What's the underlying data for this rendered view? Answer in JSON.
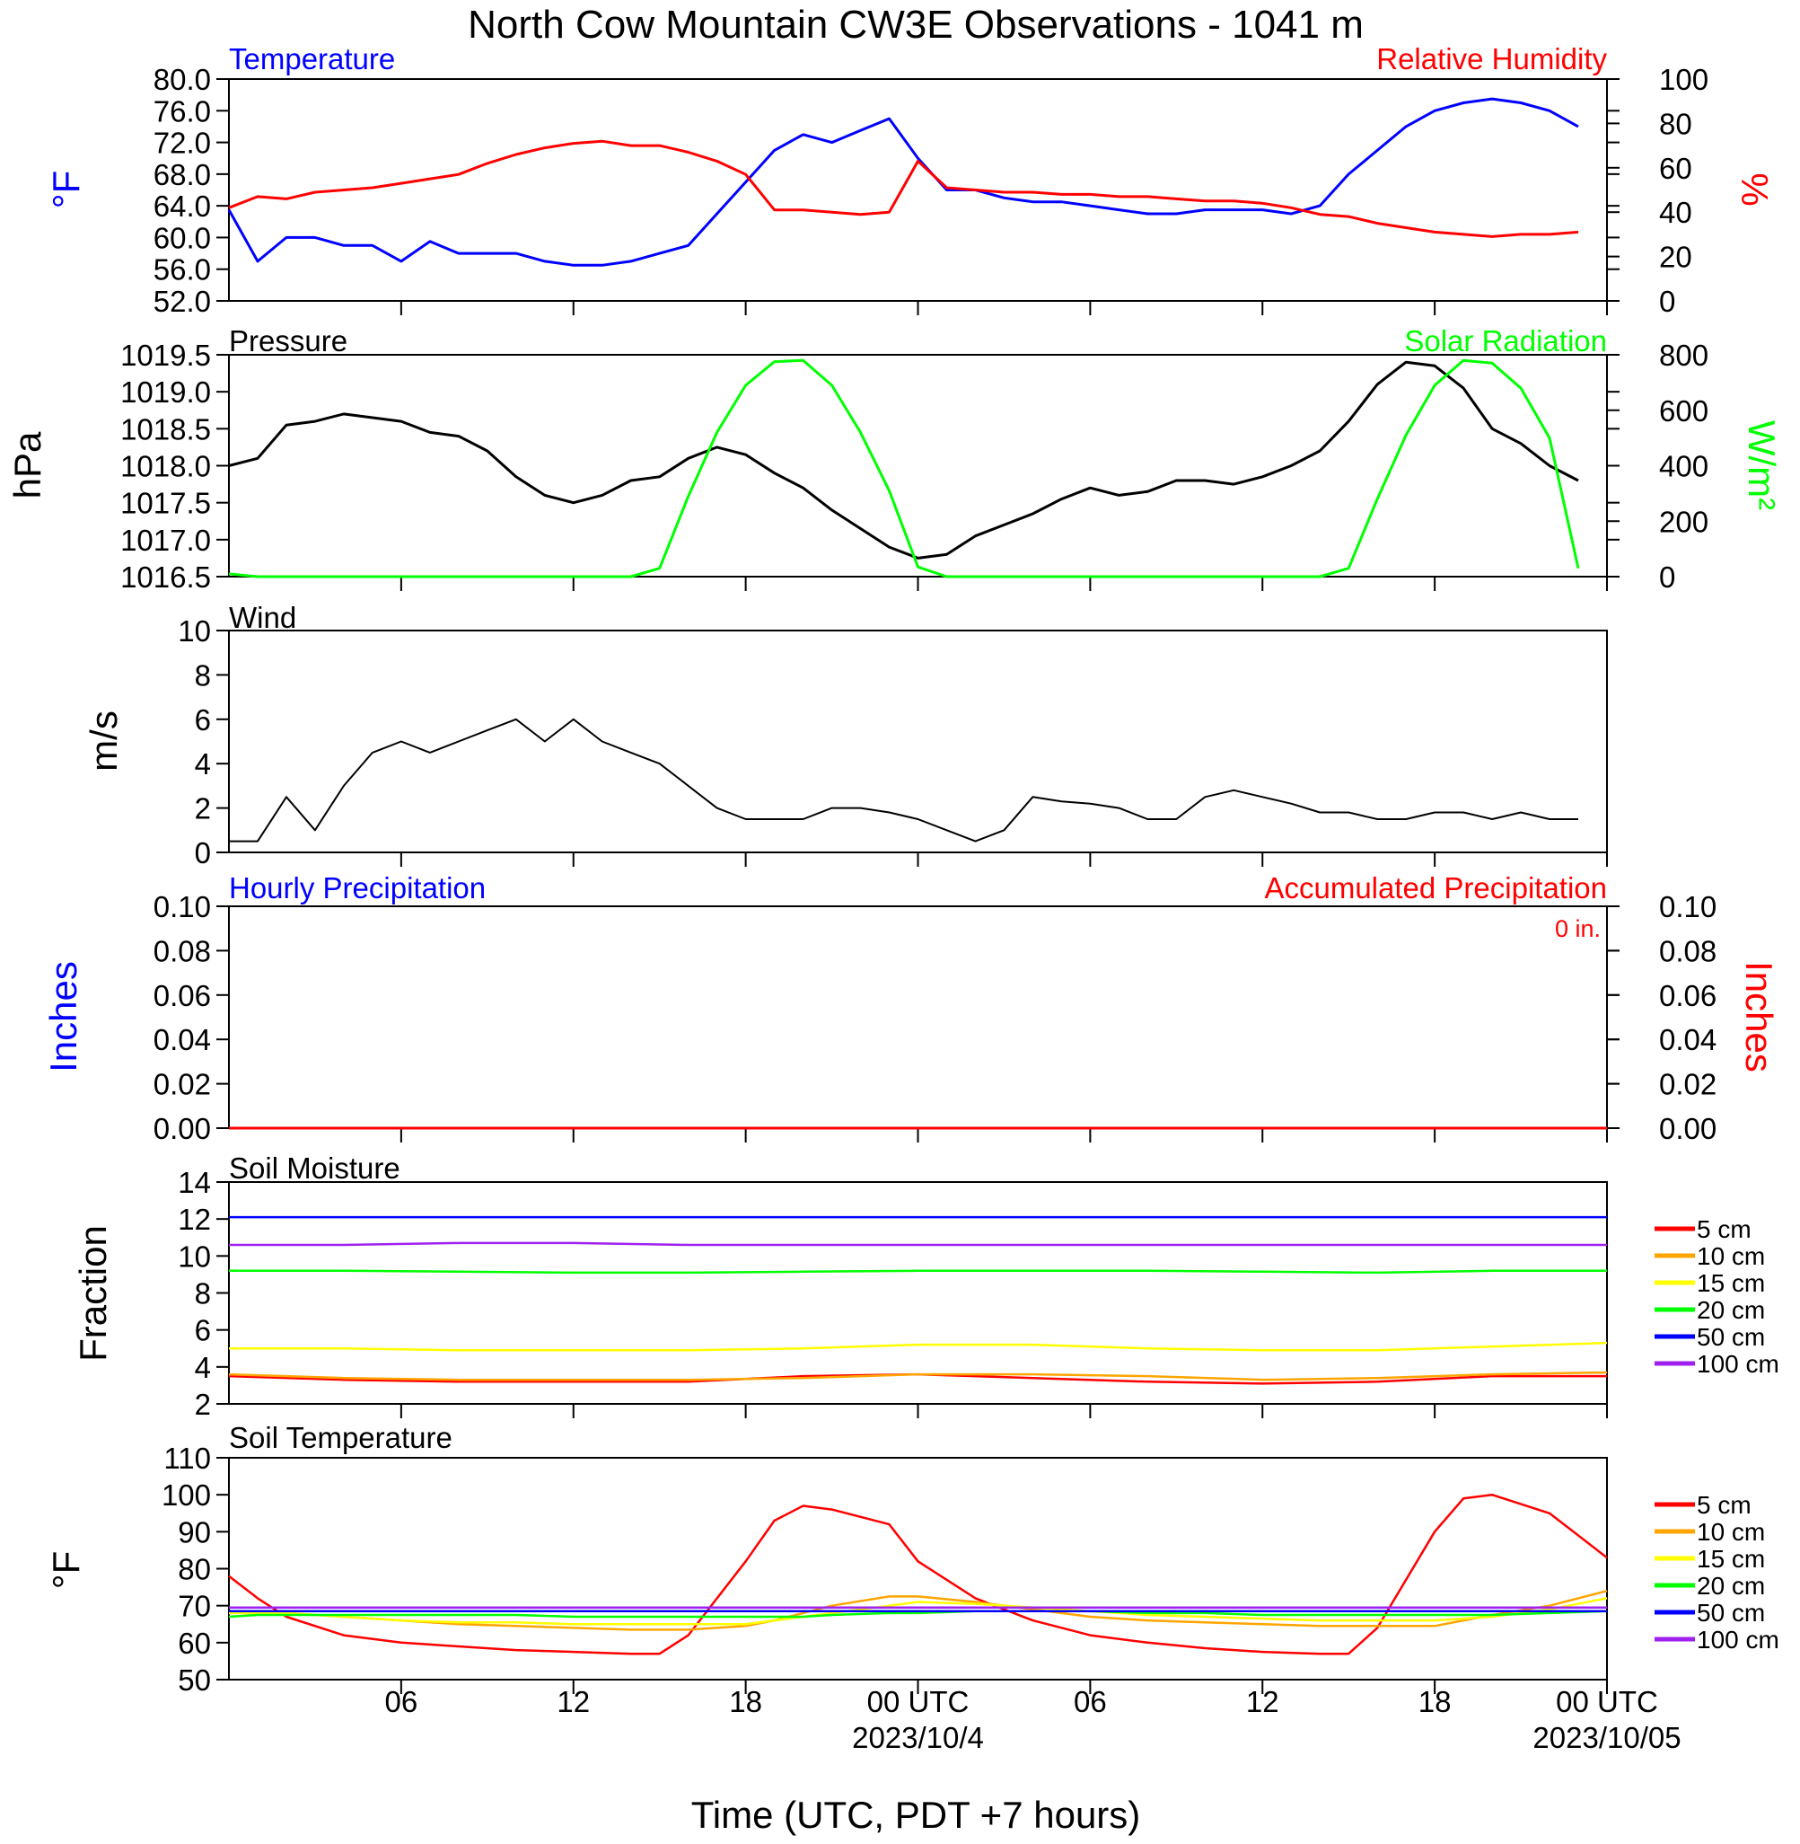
{
  "title": "North Cow Mountain CW3E Observations - 1041 m",
  "x_axis": {
    "label": "Time (UTC, PDT +7 hours)",
    "tick_labels": [
      "06",
      "12",
      "18",
      "00 UTC",
      "06",
      "12",
      "18",
      "00 UTC"
    ],
    "date_labels": [
      "2023/10/4",
      "2023/10/05"
    ]
  },
  "colors": {
    "temperature": "#0000ff",
    "humidity": "#ff0000",
    "pressure": "#000000",
    "solar": "#00ff00",
    "wind": "#000000",
    "barbs": "#ff0000",
    "soil_5cm": "#ff0000",
    "soil_10cm": "#ffa500",
    "soil_15cm": "#ffff00",
    "soil_20cm": "#00ff00",
    "soil_50cm": "#0000ff",
    "soil_100cm": "#a020f0"
  },
  "panels": {
    "temperature": {
      "left_title": "Temperature",
      "right_title": "Relative Humidity",
      "left_unit": "°F",
      "right_unit": "%",
      "left_ticks": [
        "80.0",
        "76.0",
        "72.0",
        "68.0",
        "64.0",
        "60.0",
        "56.0",
        "52.0"
      ],
      "right_ticks": [
        "100",
        "80",
        "60",
        "40",
        "20",
        "0"
      ]
    },
    "pressure": {
      "left_title": "Pressure",
      "right_title": "Solar Radiation",
      "left_unit": "hPa",
      "right_unit": "W/m²",
      "left_ticks": [
        "1019.5",
        "1019.0",
        "1018.5",
        "1018.0",
        "1017.5",
        "1017.0",
        "1016.5"
      ],
      "right_ticks": [
        "800",
        "600",
        "400",
        "200",
        "0"
      ]
    },
    "wind": {
      "left_title": "Wind",
      "left_unit": "m/s",
      "left_ticks": [
        "10",
        "8",
        "6",
        "4",
        "2",
        "0"
      ]
    },
    "precip": {
      "left_title": "Hourly Precipitation",
      "right_title": "Accumulated Precipitation",
      "left_unit": "Inches",
      "right_unit": "Inches",
      "accum_note": "0 in.",
      "left_ticks": [
        "0.10",
        "0.08",
        "0.06",
        "0.04",
        "0.02",
        "0.00"
      ],
      "right_ticks": [
        "0.10",
        "0.08",
        "0.06",
        "0.04",
        "0.02",
        "0.00"
      ]
    },
    "soil_moisture": {
      "left_title": "Soil Moisture",
      "left_unit": "Fraction",
      "left_ticks": [
        "14",
        "12",
        "10",
        "8",
        "6",
        "4",
        "2"
      ],
      "legend": [
        "5 cm",
        "10 cm",
        "15 cm",
        "20 cm",
        "50 cm",
        "100 cm"
      ]
    },
    "soil_temp": {
      "left_title": "Soil Temperature",
      "left_unit": "°F",
      "left_ticks": [
        "110",
        "100",
        "90",
        "80",
        "70",
        "60",
        "50"
      ],
      "legend": [
        "5 cm",
        "10 cm",
        "15 cm",
        "20 cm",
        "50 cm",
        "100 cm"
      ]
    }
  },
  "chart_data": [
    {
      "type": "line",
      "title": "Temperature / Relative Humidity",
      "x": [
        1,
        2,
        3,
        4,
        5,
        6,
        7,
        8,
        9,
        10,
        11,
        12,
        13,
        14,
        15,
        16,
        17,
        18,
        19,
        20,
        21,
        22,
        23,
        24,
        25,
        26,
        27,
        28,
        29,
        30,
        31,
        32,
        33,
        34,
        35,
        36,
        37,
        38,
        39,
        40,
        41,
        42,
        43,
        44,
        45,
        46,
        47,
        48
      ],
      "xlim": [
        1,
        49
      ],
      "ylim": [
        52,
        80
      ],
      "y2lim": [
        0,
        100
      ],
      "series": [
        {
          "name": "Temperature",
          "axis": "left",
          "values": [
            63.5,
            57,
            60,
            60,
            59,
            59,
            57,
            59.5,
            58,
            58,
            58,
            57,
            56.5,
            56.5,
            57,
            58,
            59,
            63,
            67,
            71,
            73,
            72,
            73.5,
            75,
            70,
            66,
            66,
            65,
            64.5,
            64.5,
            64,
            63.5,
            63,
            63,
            63.5,
            63.5,
            63.5,
            63,
            64,
            68,
            71,
            74,
            76,
            77,
            77.5,
            77,
            76,
            74
          ]
        },
        {
          "name": "Relative Humidity",
          "axis": "right",
          "values": [
            42,
            47,
            46,
            49,
            50,
            51,
            53,
            55,
            57,
            62,
            66,
            69,
            71,
            72,
            70,
            70,
            67,
            63,
            57,
            41,
            41,
            40,
            39,
            40,
            63,
            51,
            50,
            49,
            49,
            48,
            48,
            47,
            47,
            46,
            45,
            45,
            44,
            42,
            39,
            38,
            35,
            33,
            31,
            30,
            29,
            30,
            30,
            31
          ]
        }
      ]
    },
    {
      "type": "line",
      "title": "Pressure / Solar Radiation",
      "x": [
        1,
        2,
        3,
        4,
        5,
        6,
        7,
        8,
        9,
        10,
        11,
        12,
        13,
        14,
        15,
        16,
        17,
        18,
        19,
        20,
        21,
        22,
        23,
        24,
        25,
        26,
        27,
        28,
        29,
        30,
        31,
        32,
        33,
        34,
        35,
        36,
        37,
        38,
        39,
        40,
        41,
        42,
        43,
        44,
        45,
        46,
        47,
        48
      ],
      "xlim": [
        1,
        49
      ],
      "ylim": [
        1016.5,
        1019.5
      ],
      "y2lim": [
        0,
        800
      ],
      "series": [
        {
          "name": "Pressure",
          "axis": "left",
          "values": [
            1018.0,
            1018.1,
            1018.55,
            1018.6,
            1018.7,
            1018.65,
            1018.6,
            1018.45,
            1018.4,
            1018.2,
            1017.85,
            1017.6,
            1017.5,
            1017.6,
            1017.8,
            1017.85,
            1018.1,
            1018.25,
            1018.15,
            1017.9,
            1017.7,
            1017.4,
            1017.15,
            1016.9,
            1016.75,
            1016.8,
            1017.05,
            1017.2,
            1017.35,
            1017.55,
            1017.7,
            1017.6,
            1017.65,
            1017.8,
            1017.8,
            1017.75,
            1017.85,
            1018.0,
            1018.2,
            1018.6,
            1019.1,
            1019.4,
            1019.35,
            1019.05,
            1018.5,
            1018.3,
            1018.0,
            1017.8
          ]
        },
        {
          "name": "Solar Radiation",
          "axis": "right",
          "values": [
            10,
            0,
            0,
            0,
            0,
            0,
            0,
            0,
            0,
            0,
            0,
            0,
            0,
            0,
            0,
            30,
            290,
            520,
            690,
            775,
            780,
            690,
            520,
            310,
            35,
            0,
            0,
            0,
            0,
            0,
            0,
            0,
            0,
            0,
            0,
            0,
            0,
            0,
            0,
            30,
            280,
            510,
            690,
            780,
            770,
            680,
            500,
            30
          ]
        }
      ]
    },
    {
      "type": "line",
      "title": "Wind",
      "x": [
        1,
        2,
        3,
        4,
        5,
        6,
        7,
        8,
        9,
        10,
        11,
        12,
        13,
        14,
        15,
        16,
        17,
        18,
        19,
        20,
        21,
        22,
        23,
        24,
        25,
        26,
        27,
        28,
        29,
        30,
        31,
        32,
        33,
        34,
        35,
        36,
        37,
        38,
        39,
        40,
        41,
        42,
        43,
        44,
        45,
        46,
        47,
        48
      ],
      "xlim": [
        1,
        49
      ],
      "ylim": [
        0,
        10
      ],
      "series": [
        {
          "name": "Wind Speed",
          "values": [
            0.5,
            0.5,
            2.5,
            1,
            3,
            4.5,
            5,
            4.5,
            5,
            5.5,
            6,
            5,
            6,
            5,
            4.5,
            4,
            3,
            2,
            1.5,
            1.5,
            1.5,
            2,
            2,
            1.8,
            1.5,
            1,
            0.5,
            1,
            2.5,
            2.3,
            2.2,
            2,
            1.5,
            1.5,
            2.5,
            2.8,
            2.5,
            2.2,
            1.8,
            1.8,
            1.5,
            1.5,
            1.8,
            1.8,
            1.5,
            1.8,
            1.5,
            1.5
          ]
        }
      ]
    },
    {
      "type": "line",
      "title": "Precipitation",
      "x": [
        1,
        49
      ],
      "xlim": [
        1,
        49
      ],
      "ylim": [
        0,
        0.1
      ],
      "series": [
        {
          "name": "Hourly Precipitation",
          "values": [
            0,
            0
          ]
        },
        {
          "name": "Accumulated Precipitation",
          "values": [
            0,
            0
          ]
        }
      ]
    },
    {
      "type": "line",
      "title": "Soil Moisture",
      "x": [
        1,
        5,
        9,
        13,
        17,
        21,
        25,
        29,
        33,
        37,
        41,
        45,
        49
      ],
      "xlim": [
        1,
        49
      ],
      "ylim": [
        2,
        14
      ],
      "series": [
        {
          "name": "5 cm",
          "values": [
            3.5,
            3.3,
            3.2,
            3.2,
            3.2,
            3.5,
            3.6,
            3.4,
            3.2,
            3.1,
            3.2,
            3.5,
            3.5
          ]
        },
        {
          "name": "10 cm",
          "values": [
            3.6,
            3.4,
            3.3,
            3.3,
            3.3,
            3.4,
            3.6,
            3.6,
            3.5,
            3.3,
            3.4,
            3.6,
            3.7
          ]
        },
        {
          "name": "15 cm",
          "values": [
            5.0,
            5.0,
            4.9,
            4.9,
            4.9,
            5.0,
            5.2,
            5.2,
            5.0,
            4.9,
            4.9,
            5.1,
            5.3
          ]
        },
        {
          "name": "20 cm",
          "values": [
            9.2,
            9.2,
            9.15,
            9.1,
            9.1,
            9.15,
            9.2,
            9.2,
            9.2,
            9.15,
            9.1,
            9.2,
            9.2
          ]
        },
        {
          "name": "50 cm",
          "values": [
            12.1,
            12.1,
            12.1,
            12.1,
            12.1,
            12.1,
            12.1,
            12.1,
            12.1,
            12.1,
            12.1,
            12.1,
            12.1
          ]
        },
        {
          "name": "100 cm",
          "values": [
            10.6,
            10.6,
            10.7,
            10.7,
            10.6,
            10.6,
            10.6,
            10.6,
            10.6,
            10.6,
            10.6,
            10.6,
            10.6
          ]
        }
      ]
    },
    {
      "type": "line",
      "title": "Soil Temperature",
      "x": [
        1,
        2,
        3,
        5,
        7,
        9,
        11,
        13,
        15,
        16,
        17,
        19,
        20,
        21,
        22,
        24,
        25,
        27,
        29,
        31,
        33,
        35,
        37,
        39,
        40,
        41,
        43,
        44,
        45,
        47,
        49
      ],
      "xlim": [
        1,
        49
      ],
      "ylim": [
        50,
        110
      ],
      "series": [
        {
          "name": "5 cm",
          "values": [
            78,
            72,
            67,
            62,
            60,
            59,
            58,
            57.5,
            57,
            57,
            62,
            82,
            93,
            97,
            96,
            92,
            82,
            72,
            66,
            62,
            60,
            58.5,
            57.5,
            57,
            57,
            64,
            90,
            99,
            100,
            95,
            83
          ]
        },
        {
          "name": "10 cm",
          "values": [
            68,
            68,
            68,
            67,
            66,
            65,
            64.5,
            64,
            63.5,
            63.5,
            63.5,
            64.5,
            66,
            68,
            70,
            72.5,
            72.5,
            71,
            69,
            67,
            66,
            65.5,
            65,
            64.5,
            64.5,
            64.5,
            64.5,
            66,
            67.5,
            70,
            74
          ]
        },
        {
          "name": "15 cm",
          "values": [
            68,
            68,
            68,
            67,
            66,
            65.5,
            65.5,
            65,
            65,
            65,
            65,
            65,
            66,
            67,
            68,
            70,
            71,
            70.5,
            69.5,
            68.5,
            67.5,
            67,
            66.5,
            66,
            66,
            66,
            66,
            66.5,
            67,
            69,
            72
          ]
        },
        {
          "name": "20 cm",
          "values": [
            67,
            67.5,
            67.5,
            67.5,
            67.5,
            67.5,
            67.5,
            67,
            67,
            67,
            67,
            67,
            67,
            67,
            67.5,
            68,
            68,
            68.5,
            68.5,
            68.5,
            68,
            68,
            67.5,
            67.5,
            67.5,
            67.5,
            67.5,
            67.5,
            67.5,
            68,
            68.5
          ]
        },
        {
          "name": "50 cm",
          "values": [
            68.5,
            68.5,
            68.5,
            68.5,
            68.5,
            68.5,
            68.5,
            68.5,
            68.5,
            68.5,
            68.5,
            68.5,
            68.5,
            68.5,
            68.5,
            68.5,
            68.5,
            68.5,
            68.5,
            68.5,
            68.5,
            68.5,
            68.5,
            68.5,
            68.5,
            68.5,
            68.5,
            68.5,
            68.5,
            68.5,
            68.5
          ]
        },
        {
          "name": "100 cm",
          "values": [
            69.5,
            69.5,
            69.5,
            69.5,
            69.5,
            69.5,
            69.5,
            69.5,
            69.5,
            69.5,
            69.5,
            69.5,
            69.5,
            69.5,
            69.5,
            69.5,
            69.5,
            69.5,
            69.5,
            69.5,
            69.5,
            69.5,
            69.5,
            69.5,
            69.5,
            69.5,
            69.5,
            69.5,
            69.5,
            69.5,
            69.5
          ]
        }
      ]
    }
  ]
}
